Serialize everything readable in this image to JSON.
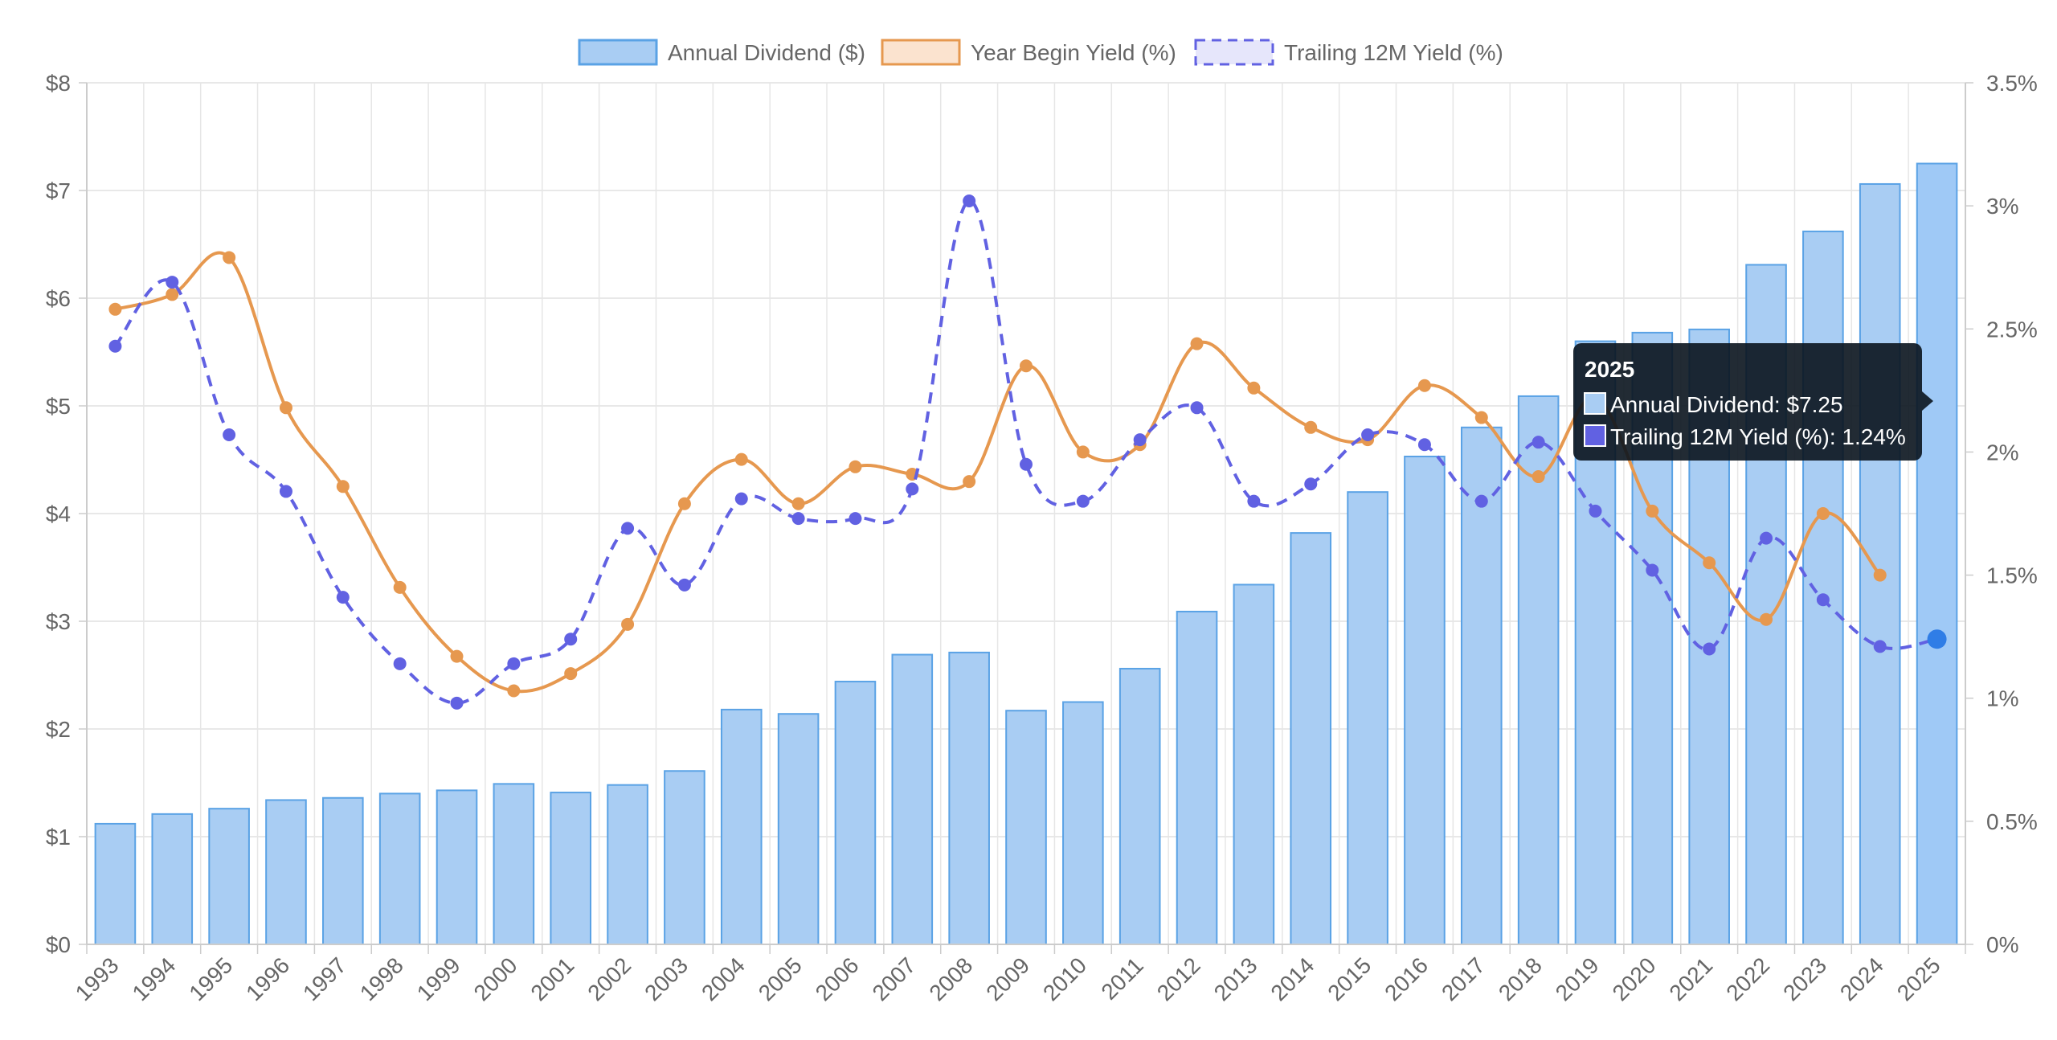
{
  "chart_data": {
    "type": "bar",
    "categories": [
      "1993",
      "1994",
      "1995",
      "1996",
      "1997",
      "1998",
      "1999",
      "2000",
      "2001",
      "2002",
      "2003",
      "2004",
      "2005",
      "2006",
      "2007",
      "2008",
      "2009",
      "2010",
      "2011",
      "2012",
      "2013",
      "2014",
      "2015",
      "2016",
      "2017",
      "2018",
      "2019",
      "2020",
      "2021",
      "2022",
      "2023",
      "2024",
      "2025"
    ],
    "series": [
      {
        "name": "Annual Dividend ($)",
        "type": "bar",
        "axis": "left",
        "color": "#a9cdf3",
        "border_color": "#5aa2e5",
        "values": [
          1.12,
          1.21,
          1.26,
          1.34,
          1.36,
          1.4,
          1.43,
          1.49,
          1.41,
          1.48,
          1.61,
          2.18,
          2.14,
          2.44,
          2.69,
          2.71,
          2.17,
          2.25,
          2.56,
          3.09,
          3.34,
          3.82,
          4.2,
          4.53,
          4.8,
          5.09,
          5.6,
          5.68,
          5.71,
          6.31,
          6.62,
          7.06,
          7.25
        ]
      },
      {
        "name": "Year Begin Yield (%)",
        "type": "line",
        "axis": "right",
        "color": "#e6984f",
        "values": [
          2.58,
          2.64,
          2.79,
          2.18,
          1.86,
          1.45,
          1.17,
          1.03,
          1.1,
          1.3,
          1.79,
          1.97,
          1.79,
          1.94,
          1.91,
          1.88,
          2.35,
          2.0,
          2.03,
          2.44,
          2.26,
          2.1,
          2.05,
          2.27,
          2.14,
          1.9,
          2.22,
          1.76,
          1.55,
          1.32,
          1.75,
          1.5,
          null
        ]
      },
      {
        "name": "Trailing 12M Yield (%)",
        "type": "line",
        "dashed": true,
        "axis": "right",
        "color": "#6161e2",
        "values": [
          2.43,
          2.69,
          2.07,
          1.84,
          1.41,
          1.14,
          0.98,
          1.14,
          1.24,
          1.69,
          1.46,
          1.81,
          1.73,
          1.73,
          1.85,
          3.02,
          1.95,
          1.8,
          2.05,
          2.18,
          1.8,
          1.87,
          2.07,
          2.03,
          1.8,
          2.04,
          1.76,
          1.52,
          1.2,
          1.65,
          1.4,
          1.21,
          1.24
        ]
      }
    ],
    "y_left": {
      "ylim": [
        0,
        8
      ],
      "ticks": [
        "$0",
        "$1",
        "$2",
        "$3",
        "$4",
        "$5",
        "$6",
        "$7",
        "$8"
      ]
    },
    "y_right": {
      "ylim": [
        0,
        3.5
      ],
      "ticks": [
        "0%",
        "0.5%",
        "1%",
        "1.5%",
        "2%",
        "2.5%",
        "3%",
        "3.5%"
      ]
    },
    "grid": true,
    "legend_position": "top-center",
    "highlighted_category": "2025",
    "tooltip": {
      "title": "2025",
      "lines": [
        {
          "label": "Annual Dividend: $7.25",
          "color": "#a9cdf3"
        },
        {
          "label": "Trailing 12M Yield (%): 1.24%",
          "color": "#6161e2"
        }
      ]
    }
  }
}
